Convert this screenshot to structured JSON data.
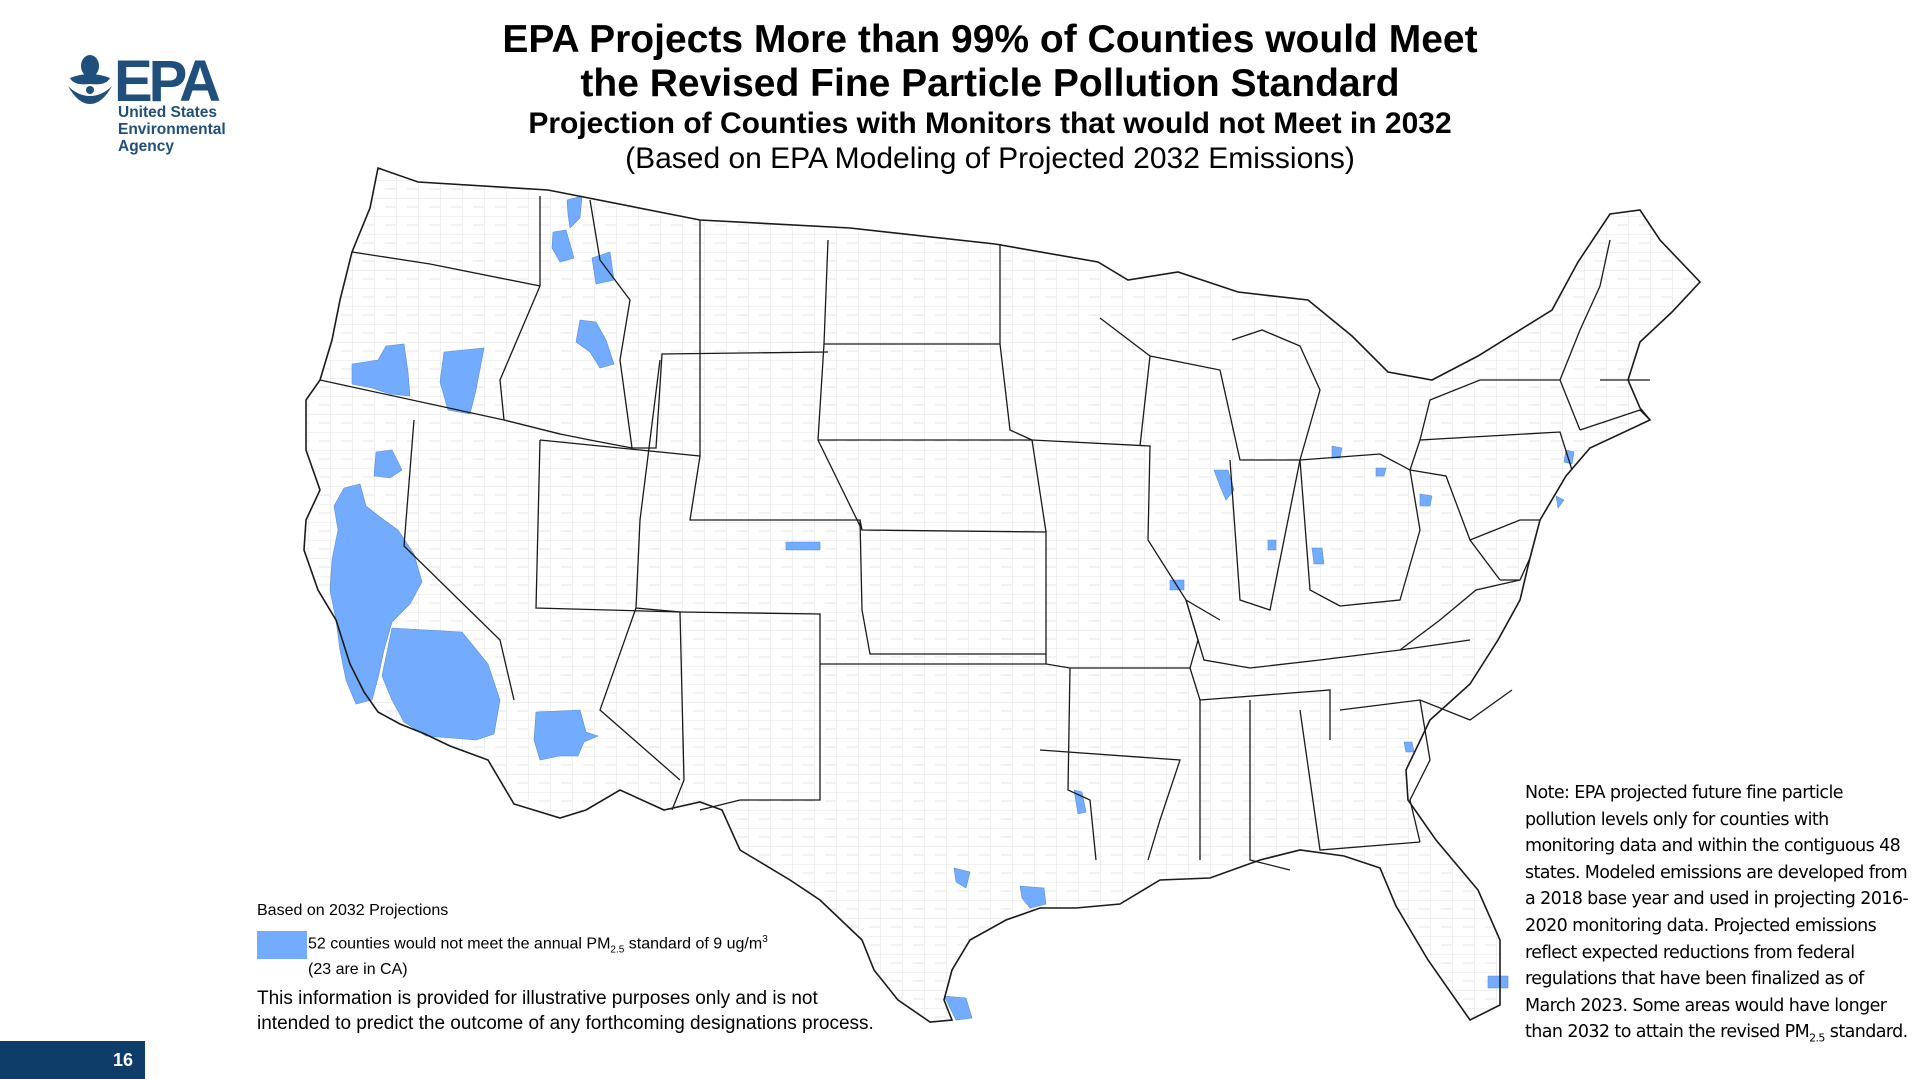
{
  "logo": {
    "acronym": "EPA",
    "agency_lines": [
      "United States",
      "Environmental",
      "Agency"
    ],
    "color": "#1f4f7a"
  },
  "header": {
    "title_line1": "EPA Projects More than 99% of Counties would Meet",
    "title_line2": "the Revised Fine Particle Pollution Standard",
    "subtitle": "Projection of Counties with Monitors that would not Meet in 2032",
    "subnote": "(Based on EPA Modeling of Projected 2032 Emissions)"
  },
  "map": {
    "highlight_color": "#73acff",
    "outline_color": "#1a1a1a"
  },
  "legend": {
    "heading": "Based on 2032 Projections",
    "entry_text_pre": "52 counties would not meet the annual PM",
    "entry_sub": "2.5",
    "entry_text_mid": " standard of 9 ug/m",
    "entry_sup": "3",
    "entry_line2": "(23 are in CA)",
    "disclaimer": "This information is provided for illustrative purposes only and is not intended to predict the outcome of any forthcoming designations process."
  },
  "note": {
    "text_main": "Note:  EPA projected future fine particle pollution levels only for counties with monitoring data and within the contiguous 48 states. Modeled emissions are developed from a 2018 base year and used in projecting 2016-2020 monitoring data. Projected emissions reflect expected reductions from federal regulations that have been finalized as of March 2023. Some areas would have longer than 2032 to attain the revised PM",
    "text_sub": "2.5",
    "text_end": " standard."
  },
  "page": {
    "number": "16"
  }
}
